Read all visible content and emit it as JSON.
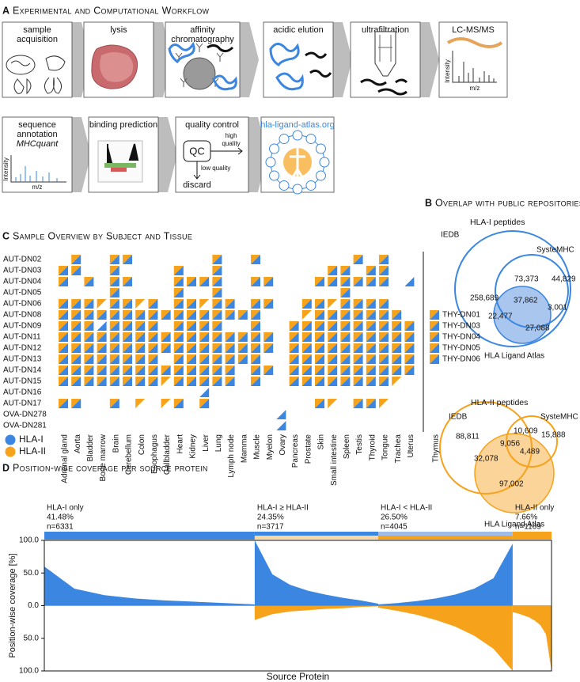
{
  "panel_a": {
    "letter": "A",
    "title": "Experimental and Computational Workflow",
    "steps": [
      {
        "label": [
          "sample",
          "acquisition"
        ]
      },
      {
        "label": [
          "lysis"
        ]
      },
      {
        "label": [
          "affinity",
          "chromatography"
        ]
      },
      {
        "label": [
          "acidic elution"
        ]
      },
      {
        "label": [
          "ultrafiltration"
        ]
      },
      {
        "label": [
          "LC-MS/MS"
        ],
        "y_axis": "Intensity",
        "x_axis": "m/z"
      },
      {
        "label": [
          "sequence",
          "annotation"
        ],
        "tool": "MHCquant",
        "y_axis": "Intensity",
        "x_axis": "m/z"
      },
      {
        "label": [
          "binding prediction"
        ]
      },
      {
        "label": [
          "quality control"
        ],
        "box": "QC",
        "high": [
          "high",
          "quality"
        ],
        "low": "low quality",
        "result": "discard"
      },
      {
        "label": [
          "hla-ligand-atlas.org"
        ]
      }
    ]
  },
  "panel_b": {
    "letter": "B",
    "title": "Overlap with public repositories",
    "venns": [
      {
        "title": "HLA-I peptides",
        "sets": [
          "IEDB",
          "SysteMHC",
          "HLA Ligand Atlas"
        ],
        "regions": [
          "258,689",
          "73,373",
          "44,829",
          "37,862",
          "3,001",
          "22,477",
          "27,088"
        ]
      },
      {
        "title": "HLA-II peptides",
        "sets": [
          "IEDB",
          "SysteMHC",
          "HLA Ligand Atlas"
        ],
        "regions": [
          "88,811",
          "10,609",
          "15,888",
          "9,056",
          "4,489",
          "32,078",
          "97,002"
        ]
      }
    ]
  },
  "panel_c": {
    "letter": "C",
    "title": "Sample Overview by Subject and Tissue",
    "subjects": [
      "AUT-DN02",
      "AUT-DN03",
      "AUT-DN04",
      "AUT-DN05",
      "AUT-DN06",
      "AUT-DN08",
      "AUT-DN09",
      "AUT-DN11",
      "AUT-DN12",
      "AUT-DN13",
      "AUT-DN14",
      "AUT-DN15",
      "AUT-DN16",
      "AUT-DN17",
      "OVA-DN278",
      "OVA-DN281"
    ],
    "tissues": [
      "Adrenal gland",
      "Aorta",
      "Bladder",
      "Bone marrow",
      "Brain",
      "Cerebellum",
      "Colon",
      "Esophagus",
      "Gallbladder",
      "Heart",
      "Kidney",
      "Liver",
      "Lung",
      "Lymph node",
      "Mamma",
      "Muscle",
      "Myelon",
      "Ovary",
      "Pancreas",
      "Prostate",
      "Skin",
      "Small intestine",
      "Spleen",
      "Testis",
      "Thyroid",
      "Tongue",
      "Trachea",
      "Uterus"
    ],
    "matrix": [
      [
        0,
        3,
        0,
        0,
        3,
        3,
        0,
        0,
        0,
        0,
        0,
        0,
        3,
        0,
        0,
        3,
        0,
        0,
        0,
        0,
        0,
        0,
        0,
        3,
        0,
        3,
        0,
        0
      ],
      [
        3,
        3,
        0,
        0,
        3,
        0,
        0,
        0,
        0,
        3,
        0,
        0,
        3,
        0,
        0,
        0,
        0,
        0,
        0,
        0,
        0,
        3,
        3,
        0,
        3,
        3,
        0,
        0
      ],
      [
        3,
        0,
        3,
        0,
        3,
        3,
        0,
        0,
        0,
        3,
        3,
        3,
        3,
        0,
        0,
        3,
        3,
        0,
        0,
        0,
        3,
        3,
        3,
        3,
        3,
        3,
        0,
        1
      ],
      [
        0,
        0,
        0,
        0,
        3,
        0,
        0,
        0,
        0,
        3,
        0,
        0,
        3,
        0,
        0,
        0,
        0,
        0,
        0,
        0,
        0,
        0,
        3,
        0,
        0,
        0,
        0,
        0
      ],
      [
        3,
        3,
        3,
        2,
        3,
        3,
        2,
        3,
        0,
        3,
        3,
        2,
        3,
        3,
        0,
        3,
        3,
        0,
        0,
        3,
        3,
        2,
        3,
        3,
        3,
        3,
        0,
        0
      ],
      [
        3,
        3,
        3,
        3,
        3,
        3,
        3,
        3,
        3,
        3,
        3,
        3,
        3,
        3,
        3,
        3,
        0,
        0,
        0,
        2,
        3,
        3,
        3,
        3,
        3,
        3,
        3,
        0
      ],
      [
        3,
        3,
        3,
        1,
        3,
        3,
        3,
        3,
        0,
        3,
        3,
        3,
        3,
        0,
        0,
        3,
        0,
        0,
        3,
        3,
        3,
        3,
        3,
        3,
        3,
        3,
        3,
        3
      ],
      [
        3,
        3,
        3,
        3,
        3,
        3,
        3,
        3,
        3,
        3,
        3,
        3,
        3,
        3,
        3,
        3,
        3,
        0,
        3,
        3,
        3,
        3,
        3,
        3,
        3,
        3,
        3,
        3
      ],
      [
        3,
        3,
        3,
        3,
        3,
        3,
        3,
        3,
        3,
        3,
        3,
        3,
        3,
        3,
        3,
        3,
        3,
        0,
        3,
        3,
        3,
        3,
        3,
        3,
        3,
        3,
        3,
        3
      ],
      [
        3,
        3,
        3,
        3,
        3,
        3,
        3,
        3,
        0,
        3,
        3,
        3,
        3,
        3,
        3,
        3,
        0,
        0,
        3,
        3,
        3,
        3,
        3,
        3,
        3,
        3,
        3,
        3
      ],
      [
        3,
        3,
        3,
        3,
        3,
        3,
        3,
        3,
        3,
        3,
        3,
        3,
        3,
        3,
        0,
        3,
        3,
        0,
        3,
        3,
        3,
        3,
        3,
        3,
        3,
        3,
        3,
        3
      ],
      [
        3,
        3,
        3,
        3,
        3,
        3,
        3,
        3,
        2,
        3,
        3,
        3,
        3,
        3,
        0,
        3,
        0,
        0,
        3,
        3,
        3,
        3,
        3,
        3,
        3,
        3,
        2,
        0
      ],
      [
        0,
        0,
        0,
        0,
        0,
        0,
        0,
        0,
        0,
        0,
        0,
        1,
        0,
        0,
        0,
        0,
        0,
        0,
        0,
        0,
        0,
        0,
        0,
        0,
        0,
        0,
        0,
        0
      ],
      [
        3,
        3,
        0,
        0,
        3,
        0,
        2,
        0,
        2,
        3,
        0,
        3,
        0,
        0,
        0,
        0,
        0,
        0,
        0,
        0,
        3,
        2,
        0,
        3,
        3,
        2,
        0,
        0
      ],
      [
        0,
        0,
        0,
        0,
        0,
        0,
        0,
        0,
        0,
        0,
        0,
        0,
        0,
        0,
        0,
        0,
        0,
        1,
        0,
        0,
        0,
        0,
        0,
        0,
        0,
        0,
        0,
        0
      ],
      [
        0,
        0,
        0,
        0,
        0,
        0,
        0,
        0,
        0,
        0,
        0,
        0,
        0,
        0,
        0,
        0,
        0,
        1,
        0,
        0,
        0,
        0,
        0,
        0,
        0,
        0,
        0,
        0
      ]
    ],
    "thymus_label": "Thymus",
    "thymus_subjects": [
      "THY-DN01",
      "THY-DN03",
      "THY-DN04",
      "THY-DN05",
      "THY-DN06"
    ],
    "thymus_matrix": [
      3,
      3,
      3,
      3,
      3
    ],
    "legend": [
      {
        "name": "HLA-I",
        "color": "#3a86e0"
      },
      {
        "name": "HLA-II",
        "color": "#f7a21b"
      }
    ]
  },
  "panel_d": {
    "letter": "D",
    "title": "Position-wise coverage per source protein",
    "colors": {
      "hla_i": "#3a86e0",
      "hla_ii": "#f7a21b",
      "hla_i_light": "#9dbde8",
      "hla_ii_light": "#f9d7a6"
    },
    "segments": [
      {
        "label": "HLA-I only",
        "share": {
          "value": 41.48,
          "label": "41.48%"
        },
        "n": {
          "value": 6331,
          "label": "n=6331"
        },
        "bar": [
          "hla_i",
          "hla_i"
        ],
        "hla_i": [
          60,
          26,
          16,
          11,
          8,
          6,
          4,
          2
        ]
      },
      {
        "label": "HLA-I ≥ HLA-II",
        "share": {
          "value": 24.35,
          "label": "24.35%"
        },
        "n": {
          "value": 3717,
          "label": "n=3717"
        },
        "bar": [
          "hla_i",
          "hla_ii_light"
        ],
        "hla_i": [
          100,
          48,
          32,
          23,
          17,
          12,
          8,
          3
        ],
        "hla_ii": [
          22,
          13,
          9,
          7,
          5,
          4,
          2,
          1
        ]
      },
      {
        "label": "HLA-I < HLA-II",
        "share": {
          "value": 26.5,
          "label": "26.50%"
        },
        "n": {
          "value": 4045,
          "label": "n=4045"
        },
        "bar": [
          "hla_i_light",
          "hla_ii"
        ],
        "hla_i": [
          2,
          4,
          7,
          11,
          17,
          26,
          42,
          95
        ],
        "hla_ii": [
          3,
          8,
          14,
          22,
          32,
          46,
          66,
          100
        ]
      },
      {
        "label": "HLA-II only",
        "share": {
          "value": 7.66,
          "label": "7.66%"
        },
        "n": {
          "value": 1169,
          "label": "n=1169"
        },
        "bar": [
          "hla_ii",
          "hla_ii"
        ],
        "hla_ii": [
          10,
          12,
          15,
          18,
          23,
          30,
          44,
          100
        ]
      }
    ],
    "ylabel": "Position-wise coverage [%]",
    "xlabel": "Source Protein",
    "ylim": [
      -100,
      100
    ],
    "yticks": [
      {
        "value": 100,
        "label": "100.0"
      },
      {
        "value": 50,
        "label": "50.0"
      },
      {
        "value": 0,
        "label": "0.0"
      },
      {
        "value": -50,
        "label": "50.0"
      },
      {
        "value": -100,
        "label": "100.0"
      }
    ]
  }
}
